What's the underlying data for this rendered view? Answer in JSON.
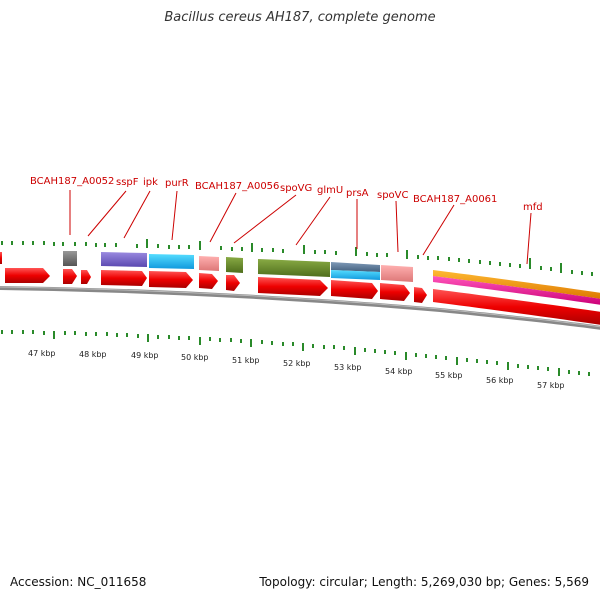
{
  "title": "Bacillus cereus AH187, complete genome",
  "footer": {
    "accession": "Accession: NC_011658",
    "info": "Topology: circular; Length: 5,269,030 bp; Genes: 5,569"
  },
  "gene_labels": [
    "BCAH187_A0052",
    "sspF",
    "ipk",
    "purR",
    "BCAH187_A0056",
    "spoVG",
    "glmU",
    "prsA",
    "spoVC",
    "BCAH187_A0061",
    "mfd"
  ],
  "kbp_labels": [
    "47 kbp",
    "48 kbp",
    "49 kbp",
    "50 kbp",
    "51 kbp",
    "52 kbp",
    "53 kbp",
    "54 kbp",
    "55 kbp",
    "56 kbp",
    "57 kbp"
  ],
  "colors": {
    "label": "#cc0000",
    "cds": "#ee0000",
    "tick": "#2a8a2a",
    "backbone": "#777777"
  }
}
